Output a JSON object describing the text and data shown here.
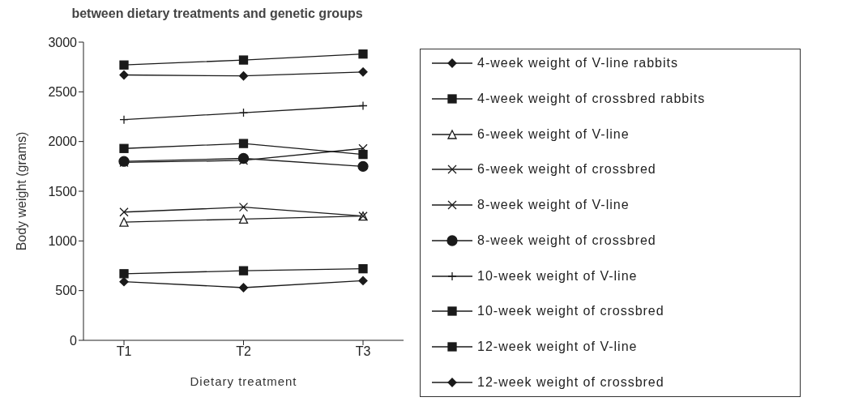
{
  "chart_data": {
    "type": "line",
    "title": "between dietary treatments and genetic groups",
    "xlabel": "Dietary treatment",
    "ylabel": "Body weight (grams)",
    "categories": [
      "T1",
      "T2",
      "T3"
    ],
    "ylim": [
      0,
      3000
    ],
    "yticks": [
      0,
      500,
      1000,
      1500,
      2000,
      2500,
      3000
    ],
    "grid": false,
    "legend": "right",
    "line_style": "solid",
    "series": [
      {
        "name": "4-week weight of V-line rabbits",
        "color": "#1a1a1a",
        "marker": "diamond",
        "values": [
          590,
          530,
          600
        ]
      },
      {
        "name": "4-week weight of crossbred rabbits",
        "color": "#1a1a1a",
        "marker": "square",
        "values": [
          670,
          700,
          720
        ]
      },
      {
        "name": "6-week weight of V-line",
        "color": "#1a1a1a",
        "marker": "triangle",
        "values": [
          1190,
          1220,
          1250
        ]
      },
      {
        "name": "6-week weight of crossbred",
        "color": "#1a1a1a",
        "marker": "cross",
        "values": [
          1290,
          1340,
          1250
        ]
      },
      {
        "name": "8-week weight of V-line",
        "color": "#1a1a1a",
        "marker": "cross",
        "values": [
          1790,
          1810,
          1930
        ]
      },
      {
        "name": "8-week weight of crossbred",
        "color": "#1a1a1a",
        "marker": "circle",
        "values": [
          1800,
          1830,
          1750
        ]
      },
      {
        "name": "10-week weight of V-line",
        "color": "#1a1a1a",
        "marker": "plus",
        "values": [
          2220,
          2290,
          2360
        ]
      },
      {
        "name": "10-week weight of crossbred",
        "color": "#1a1a1a",
        "marker": "square",
        "values": [
          1930,
          1980,
          1870
        ]
      },
      {
        "name": "12-week weight of V-line",
        "color": "#1a1a1a",
        "marker": "square",
        "values": [
          2770,
          2820,
          2880
        ]
      },
      {
        "name": "12-week weight of crossbred",
        "color": "#1a1a1a",
        "marker": "diamond",
        "values": [
          2670,
          2660,
          2700
        ]
      }
    ]
  }
}
